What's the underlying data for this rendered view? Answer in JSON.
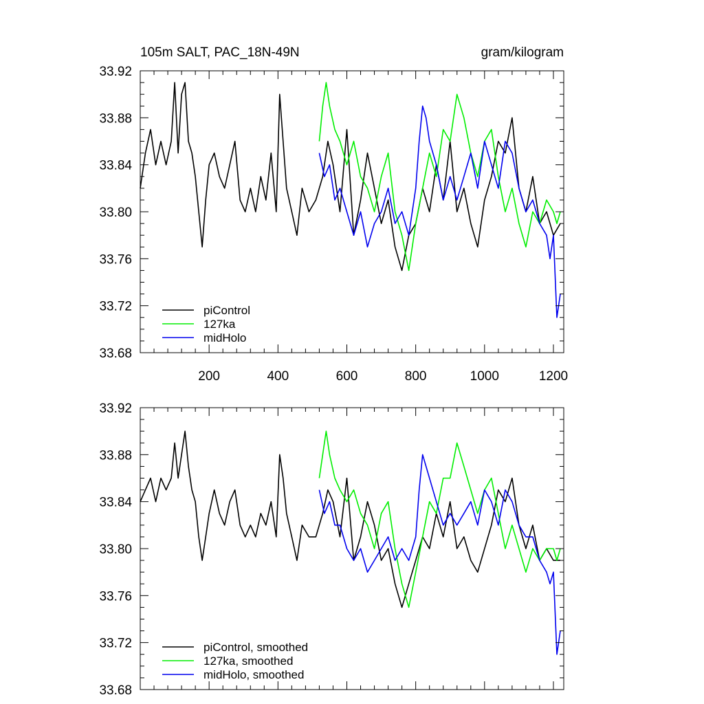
{
  "chart_data": [
    {
      "type": "line",
      "title_left": "105m SALT, PAC_18N-49N",
      "title_right": "gram/kilogram",
      "xlim": [
        0,
        1230
      ],
      "ylim": [
        33.68,
        33.92
      ],
      "xticks": [
        200,
        400,
        600,
        800,
        1000,
        1200
      ],
      "xtick_labels": [
        "200",
        "400",
        "600",
        "800",
        "1000",
        "1200"
      ],
      "yticks": [
        33.68,
        33.72,
        33.76,
        33.8,
        33.84,
        33.88,
        33.92
      ],
      "ytick_labels": [
        "33.68",
        "33.72",
        "33.76",
        "33.80",
        "33.84",
        "33.88",
        "33.92"
      ],
      "legend_position": "bottom-left",
      "series": [
        {
          "name": "piControl",
          "color": "#000000",
          "x": [
            0,
            15,
            30,
            45,
            60,
            75,
            90,
            100,
            110,
            120,
            130,
            140,
            150,
            160,
            170,
            180,
            190,
            200,
            215,
            230,
            245,
            260,
            275,
            290,
            305,
            320,
            335,
            350,
            365,
            380,
            395,
            405,
            415,
            425,
            440,
            455,
            470,
            490,
            510,
            530,
            545,
            560,
            580,
            600,
            620,
            640,
            660,
            680,
            700,
            720,
            740,
            760,
            780,
            800,
            820,
            840,
            860,
            880,
            900,
            920,
            940,
            960,
            980,
            1000,
            1020,
            1040,
            1060,
            1080,
            1100,
            1120,
            1140,
            1160,
            1180,
            1200,
            1220
          ],
          "y": [
            33.82,
            33.85,
            33.87,
            33.84,
            33.86,
            33.84,
            33.86,
            33.91,
            33.85,
            33.9,
            33.91,
            33.86,
            33.85,
            33.83,
            33.8,
            33.77,
            33.81,
            33.84,
            33.85,
            33.83,
            33.82,
            33.84,
            33.86,
            33.81,
            33.8,
            33.82,
            33.8,
            33.83,
            33.81,
            33.85,
            33.8,
            33.9,
            33.86,
            33.82,
            33.8,
            33.78,
            33.82,
            33.8,
            33.81,
            33.83,
            33.86,
            33.84,
            33.8,
            33.87,
            33.78,
            33.81,
            33.85,
            33.82,
            33.79,
            33.81,
            33.77,
            33.75,
            33.78,
            33.79,
            33.82,
            33.8,
            33.84,
            33.81,
            33.86,
            33.8,
            33.82,
            33.79,
            33.77,
            33.81,
            33.83,
            33.86,
            33.85,
            33.88,
            33.82,
            33.8,
            33.83,
            33.79,
            33.8,
            33.78,
            33.79
          ]
        },
        {
          "name": "127ka",
          "color": "#00ee00",
          "x": [
            520,
            530,
            540,
            550,
            565,
            580,
            600,
            620,
            640,
            660,
            680,
            700,
            720,
            740,
            760,
            780,
            800,
            820,
            840,
            860,
            880,
            900,
            920,
            940,
            960,
            980,
            1000,
            1020,
            1040,
            1060,
            1080,
            1100,
            1120,
            1140,
            1160,
            1180,
            1200,
            1210,
            1220
          ],
          "y": [
            33.86,
            33.89,
            33.91,
            33.89,
            33.87,
            33.86,
            33.84,
            33.86,
            33.83,
            33.82,
            33.8,
            33.83,
            33.85,
            33.8,
            33.78,
            33.75,
            33.79,
            33.82,
            33.85,
            33.83,
            33.87,
            33.86,
            33.9,
            33.88,
            33.85,
            33.83,
            33.86,
            33.87,
            33.83,
            33.8,
            33.82,
            33.79,
            33.77,
            33.8,
            33.79,
            33.81,
            33.8,
            33.79,
            33.8
          ]
        },
        {
          "name": "midHolo",
          "color": "#0000ee",
          "x": [
            520,
            535,
            550,
            565,
            580,
            600,
            620,
            640,
            660,
            680,
            700,
            720,
            740,
            760,
            780,
            800,
            810,
            820,
            830,
            840,
            860,
            880,
            900,
            920,
            940,
            960,
            980,
            1000,
            1020,
            1040,
            1060,
            1080,
            1100,
            1120,
            1140,
            1160,
            1180,
            1190,
            1200,
            1210,
            1220
          ],
          "y": [
            33.85,
            33.83,
            33.84,
            33.81,
            33.82,
            33.8,
            33.78,
            33.8,
            33.77,
            33.79,
            33.8,
            33.82,
            33.79,
            33.8,
            33.78,
            33.82,
            33.86,
            33.89,
            33.88,
            33.86,
            33.84,
            33.81,
            33.83,
            33.81,
            33.83,
            33.85,
            33.82,
            33.86,
            33.84,
            33.82,
            33.86,
            33.85,
            33.82,
            33.8,
            33.81,
            33.79,
            33.78,
            33.76,
            33.78,
            33.71,
            33.73
          ]
        }
      ]
    },
    {
      "type": "line",
      "xlim": [
        0,
        1230
      ],
      "ylim": [
        33.68,
        33.92
      ],
      "yticks": [
        33.68,
        33.72,
        33.76,
        33.8,
        33.84,
        33.88,
        33.92
      ],
      "ytick_labels": [
        "33.68",
        "33.72",
        "33.76",
        "33.80",
        "33.84",
        "33.88",
        "33.92"
      ],
      "legend_position": "bottom-left",
      "series": [
        {
          "name": "piControl, smoothed",
          "color": "#000000",
          "x": [
            0,
            15,
            30,
            45,
            60,
            75,
            90,
            100,
            110,
            120,
            130,
            140,
            150,
            160,
            170,
            180,
            190,
            200,
            215,
            230,
            245,
            260,
            275,
            290,
            305,
            320,
            335,
            350,
            365,
            380,
            395,
            405,
            415,
            425,
            440,
            455,
            470,
            490,
            510,
            530,
            545,
            560,
            580,
            600,
            620,
            640,
            660,
            680,
            700,
            720,
            740,
            760,
            780,
            800,
            820,
            840,
            860,
            880,
            900,
            920,
            940,
            960,
            980,
            1000,
            1020,
            1040,
            1060,
            1080,
            1100,
            1120,
            1140,
            1160,
            1180,
            1200,
            1220
          ],
          "y": [
            33.84,
            33.85,
            33.86,
            33.84,
            33.86,
            33.85,
            33.86,
            33.89,
            33.86,
            33.88,
            33.9,
            33.87,
            33.85,
            33.84,
            33.81,
            33.79,
            33.81,
            33.83,
            33.85,
            33.83,
            33.82,
            33.84,
            33.85,
            33.82,
            33.81,
            33.82,
            33.81,
            33.83,
            33.82,
            33.84,
            33.81,
            33.88,
            33.86,
            33.83,
            33.81,
            33.79,
            33.82,
            33.81,
            33.81,
            33.83,
            33.85,
            33.84,
            33.81,
            33.86,
            33.79,
            33.81,
            33.84,
            33.82,
            33.79,
            33.8,
            33.77,
            33.75,
            33.77,
            33.79,
            33.81,
            33.8,
            33.83,
            33.81,
            33.84,
            33.8,
            33.81,
            33.79,
            33.78,
            33.8,
            33.82,
            33.85,
            33.84,
            33.86,
            33.82,
            33.8,
            33.82,
            33.79,
            33.8,
            33.79,
            33.79
          ]
        },
        {
          "name": "127ka, smoothed",
          "color": "#00ee00",
          "x": [
            520,
            530,
            540,
            550,
            565,
            580,
            600,
            620,
            640,
            660,
            680,
            700,
            720,
            740,
            760,
            780,
            800,
            820,
            840,
            860,
            880,
            900,
            920,
            940,
            960,
            980,
            1000,
            1020,
            1040,
            1060,
            1080,
            1100,
            1120,
            1140,
            1160,
            1180,
            1200,
            1210,
            1220
          ],
          "y": [
            33.86,
            33.88,
            33.9,
            33.88,
            33.86,
            33.85,
            33.84,
            33.85,
            33.83,
            33.82,
            33.8,
            33.83,
            33.84,
            33.8,
            33.77,
            33.75,
            33.78,
            33.81,
            33.84,
            33.83,
            33.86,
            33.86,
            33.89,
            33.87,
            33.85,
            33.83,
            33.85,
            33.86,
            33.83,
            33.8,
            33.82,
            33.8,
            33.78,
            33.8,
            33.79,
            33.8,
            33.8,
            33.79,
            33.8
          ]
        },
        {
          "name": "midHolo, smoothed",
          "color": "#0000ee",
          "x": [
            520,
            535,
            550,
            565,
            580,
            600,
            620,
            640,
            660,
            680,
            700,
            720,
            740,
            760,
            780,
            800,
            810,
            820,
            830,
            840,
            860,
            880,
            900,
            920,
            940,
            960,
            980,
            1000,
            1020,
            1040,
            1060,
            1080,
            1100,
            1120,
            1140,
            1160,
            1180,
            1190,
            1200,
            1210,
            1220
          ],
          "y": [
            33.85,
            33.83,
            33.84,
            33.82,
            33.82,
            33.8,
            33.79,
            33.8,
            33.78,
            33.79,
            33.8,
            33.81,
            33.79,
            33.8,
            33.79,
            33.81,
            33.85,
            33.88,
            33.87,
            33.86,
            33.84,
            33.82,
            33.83,
            33.82,
            33.83,
            33.84,
            33.82,
            33.85,
            33.84,
            33.82,
            33.85,
            33.84,
            33.82,
            33.81,
            33.81,
            33.79,
            33.78,
            33.77,
            33.78,
            33.71,
            33.73
          ]
        }
      ]
    }
  ]
}
